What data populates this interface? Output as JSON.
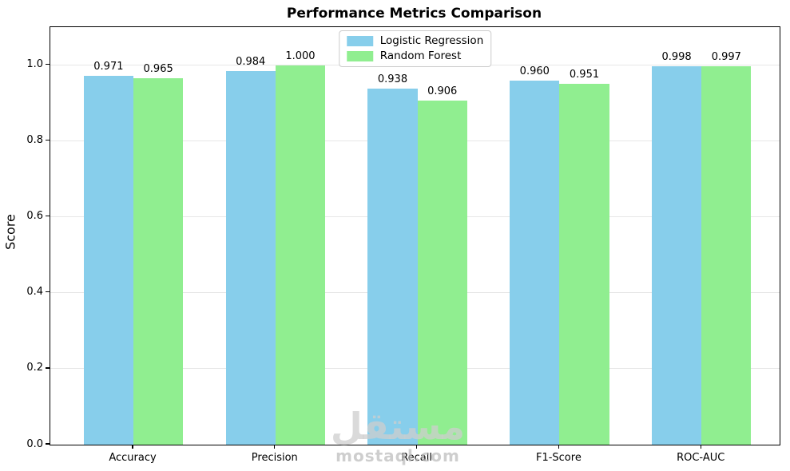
{
  "chart_data": {
    "type": "bar",
    "title": "Performance Metrics Comparison",
    "xlabel": "",
    "ylabel": "Score",
    "categories": [
      "Accuracy",
      "Precision",
      "Recall",
      "F1-Score",
      "ROC-AUC"
    ],
    "series": [
      {
        "name": "Logistic Regression",
        "color": "#87CEEB",
        "values": [
          0.971,
          0.984,
          0.938,
          0.96,
          0.998
        ]
      },
      {
        "name": "Random Forest",
        "color": "#90EE90",
        "values": [
          0.965,
          1.0,
          0.906,
          0.951,
          0.997
        ]
      }
    ],
    "value_label_format": "3-decimals",
    "yticks": [
      0.0,
      0.2,
      0.4,
      0.6,
      0.8,
      1.0
    ],
    "ytick_labels": [
      "0.0",
      "0.2",
      "0.4",
      "0.6",
      "0.8",
      "1.0"
    ],
    "ylim": [
      0,
      1.1
    ],
    "xlim": [
      -0.585,
      4.55
    ],
    "bar_width": 0.35,
    "grid": "horizontal",
    "grid_color": "#e6e6e6",
    "legend_position": "upper center"
  },
  "watermark": {
    "logo_text": "مستقل",
    "domain_text": "mostaql.com"
  }
}
